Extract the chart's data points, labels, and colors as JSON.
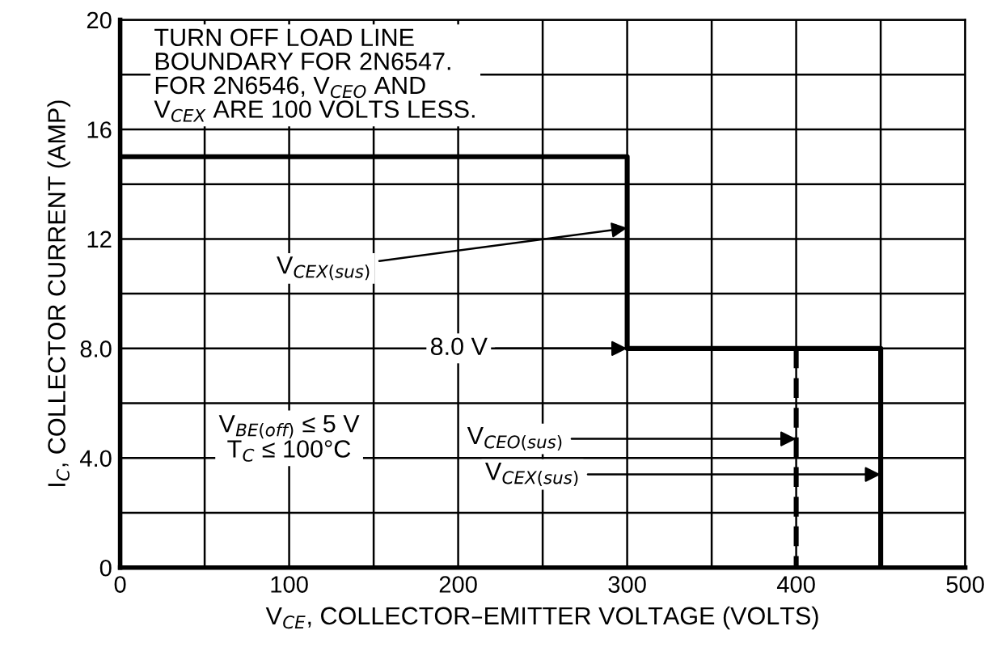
{
  "chart_data": {
    "type": "line",
    "xlabel": "V$_{CE}$, COLLECTOR–EMITTER VOLTAGE (VOLTS)",
    "ylabel": "I$_{C}$, COLLECTOR CURRENT (AMP)",
    "series": [
      {
        "x": [
          0,
          300,
          300,
          450,
          450
        ],
        "values": [
          15,
          15,
          8,
          8,
          0
        ],
        "color": "#000000",
        "line_style": "solid"
      },
      {
        "x": [
          400,
          400
        ],
        "values": [
          8,
          0
        ],
        "color": "#000000",
        "line_style": "dashed"
      }
    ],
    "xlim": [
      0,
      500
    ],
    "xticks": [
      0,
      {
        "value": 50,
        "label": null
      },
      100,
      {
        "value": 150,
        "label": null
      },
      200,
      {
        "value": 250,
        "label": null
      },
      300,
      {
        "value": 350,
        "label": null
      },
      400,
      {
        "value": 450,
        "label": null
      },
      500
    ],
    "ylim": [
      0,
      20
    ],
    "yticks": [
      0,
      {
        "value": 2,
        "label": null
      },
      {
        "value": 4,
        "label": "4.0"
      },
      {
        "value": 6,
        "label": null
      },
      {
        "value": 8,
        "label": "8.0"
      },
      {
        "value": 10,
        "label": null
      },
      12,
      {
        "value": 14,
        "label": null
      },
      16,
      {
        "value": 18,
        "label": null
      },
      20
    ],
    "grid": true,
    "legend": false,
    "marker": "none",
    "annotations": [
      "TURN OFF LOAD LINE\nBOUNDARY FOR 2N6547.\nFOR 2N6546, V$_{CEO}$ AND\nV$_{CEX}$ ARE 100 VOLTS LESS.",
      "V$_{BE(off)}$ ≤ 5 V\nT$_{C}$ ≤ 100°C",
      {
        "text": "V$_{CEX(sus)}$",
        "x": 300,
        "y": 12.4
      },
      {
        "text": "8.0 V",
        "x": 300,
        "y": 8
      },
      {
        "text": "V$_{CEO(sus)}$",
        "x": 400,
        "y": 4.7
      },
      {
        "text": "V$_{CEX(sus)}$",
        "x": 450,
        "y": 3.4
      }
    ]
  }
}
